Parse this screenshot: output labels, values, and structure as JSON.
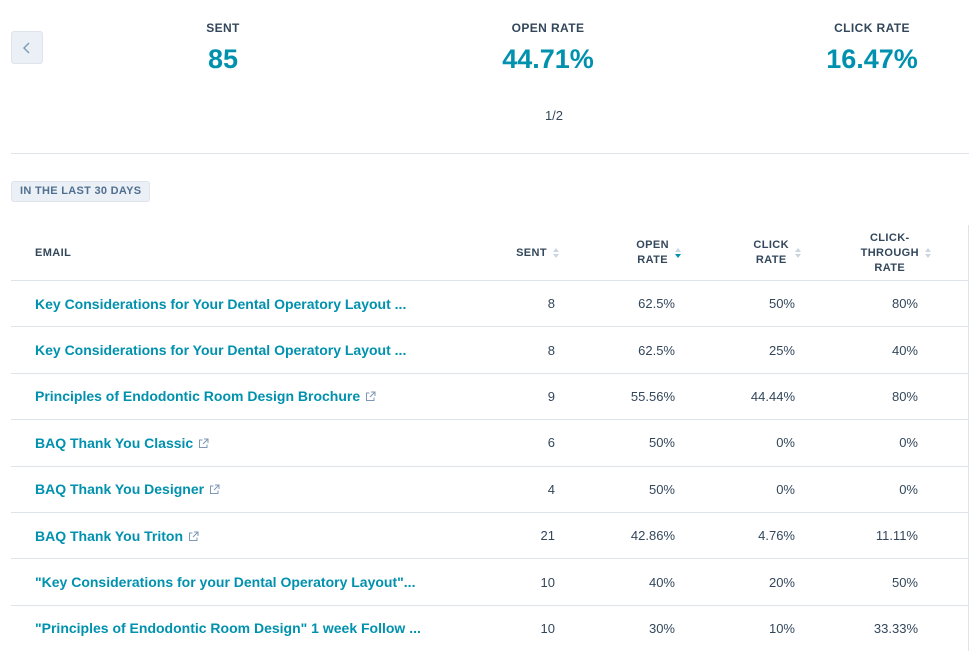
{
  "stats": {
    "sent": {
      "label": "SENT",
      "value": "85"
    },
    "open_rate": {
      "label": "OPEN RATE",
      "value": "44.71%"
    },
    "click_rate": {
      "label": "CLICK RATE",
      "value": "16.47%"
    },
    "pager": "1/2",
    "prev_icon": "chevron-left-icon"
  },
  "period_tag": "IN THE LAST 30 DAYS",
  "table": {
    "headers": {
      "email": "EMAIL",
      "sent": "SENT",
      "open_rate_1": "OPEN",
      "open_rate_2": "RATE",
      "click_rate_1": "CLICK",
      "click_rate_2": "RATE",
      "ctr_1": "CLICK-",
      "ctr_2": "THROUGH",
      "ctr_3": "RATE"
    },
    "sorted_by": "open_rate",
    "sort_direction": "descending",
    "rows": [
      {
        "email": "Key Considerations for Your Dental Operatory Layout ...",
        "external": false,
        "sent": "8",
        "open_rate": "62.5%",
        "click_rate": "50%",
        "ctr": "80%"
      },
      {
        "email": "Key Considerations for Your Dental Operatory Layout ...",
        "external": false,
        "sent": "8",
        "open_rate": "62.5%",
        "click_rate": "25%",
        "ctr": "40%"
      },
      {
        "email": "Principles of Endodontic Room Design Brochure",
        "external": true,
        "sent": "9",
        "open_rate": "55.56%",
        "click_rate": "44.44%",
        "ctr": "80%"
      },
      {
        "email": "BAQ Thank You Classic",
        "external": true,
        "sent": "6",
        "open_rate": "50%",
        "click_rate": "0%",
        "ctr": "0%"
      },
      {
        "email": "BAQ Thank You Designer",
        "external": true,
        "sent": "4",
        "open_rate": "50%",
        "click_rate": "0%",
        "ctr": "0%"
      },
      {
        "email": "BAQ Thank You Triton",
        "external": true,
        "sent": "21",
        "open_rate": "42.86%",
        "click_rate": "4.76%",
        "ctr": "11.11%"
      },
      {
        "email": "\"Key Considerations for your Dental Operatory Layout\"...",
        "external": false,
        "sent": "10",
        "open_rate": "40%",
        "click_rate": "20%",
        "ctr": "50%"
      },
      {
        "email": "\"Principles of Endodontic Room Design\" 1 week Follow ...",
        "external": false,
        "sent": "10",
        "open_rate": "30%",
        "click_rate": "10%",
        "ctr": "33.33%"
      }
    ]
  },
  "colors": {
    "accent": "#0091ae",
    "text": "#33475b",
    "border": "#dfe3eb",
    "tag_bg": "#eaf0f6"
  }
}
